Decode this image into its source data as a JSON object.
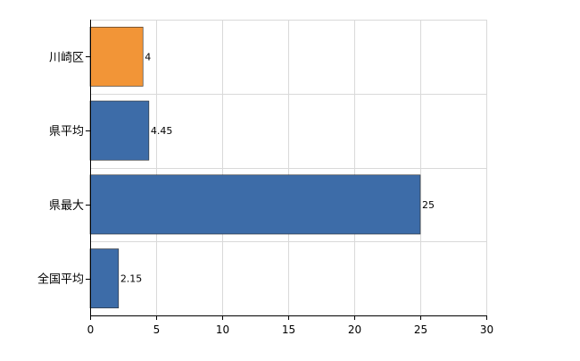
{
  "chart_data": {
    "type": "bar",
    "orientation": "horizontal",
    "categories": [
      "川崎区",
      "県平均",
      "県最大",
      "全国平均"
    ],
    "values": [
      4,
      4.45,
      25,
      2.15
    ],
    "data_labels": [
      "4",
      "4.45",
      "25",
      "2.15"
    ],
    "bar_colors": [
      "#f29537",
      "#3d6ca8",
      "#3d6ca8",
      "#3d6ca8"
    ],
    "xlim": [
      0,
      30
    ],
    "xticks": [
      0,
      5,
      10,
      15,
      20,
      25,
      30
    ],
    "grid": true,
    "title": "",
    "xlabel": "",
    "ylabel": ""
  }
}
